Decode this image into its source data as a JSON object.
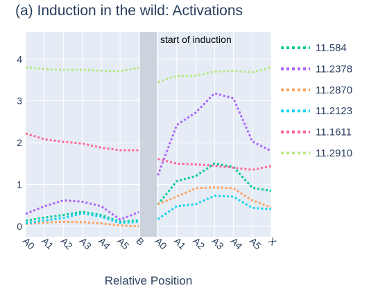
{
  "chart_data": {
    "type": "line",
    "title": "(a) Induction in the wild: Activations",
    "xlabel": "Relative Position",
    "ylabel": "",
    "categories": [
      "A0",
      "A1",
      "A2",
      "A3",
      "A4",
      "A5",
      "B",
      "A0",
      "A1",
      "A2",
      "A3",
      "A4",
      "A5",
      "X"
    ],
    "segments": [
      [
        0,
        6
      ],
      [
        7,
        13
      ]
    ],
    "ylim": [
      -0.25,
      4.65
    ],
    "yticks": [
      0,
      1,
      2,
      3,
      4
    ],
    "grid": true,
    "legend_position": "right",
    "line_style": "dotted",
    "shaded_region": {
      "category_index": 6.5,
      "color": "#cdd3dd"
    },
    "annotation": "start of induction",
    "series": [
      {
        "name": "11.584",
        "color": "#00cc96",
        "values": [
          0.13,
          0.21,
          0.27,
          0.35,
          0.27,
          0.11,
          0.14,
          0.52,
          1.08,
          1.2,
          1.5,
          1.42,
          0.92,
          0.85
        ]
      },
      {
        "name": "11.2378",
        "color": "#ab63fa",
        "values": [
          0.3,
          0.48,
          0.62,
          0.59,
          0.48,
          0.16,
          0.34,
          1.22,
          2.42,
          2.72,
          3.18,
          3.06,
          2.03,
          1.8
        ]
      },
      {
        "name": "11.2870",
        "color": "#ffa15a",
        "values": [
          0.06,
          0.09,
          0.11,
          0.1,
          0.07,
          0.02,
          0.0,
          0.53,
          0.71,
          0.91,
          0.93,
          0.91,
          0.62,
          0.45
        ]
      },
      {
        "name": "11.2123",
        "color": "#19d3f3",
        "values": [
          0.07,
          0.14,
          0.2,
          0.31,
          0.23,
          0.08,
          0.11,
          0.17,
          0.48,
          0.53,
          0.73,
          0.71,
          0.44,
          0.41
        ]
      },
      {
        "name": "11.1611",
        "color": "#ff6692",
        "values": [
          2.22,
          2.08,
          2.02,
          1.98,
          1.88,
          1.82,
          1.82,
          1.61,
          1.5,
          1.48,
          1.45,
          1.4,
          1.35,
          1.44
        ]
      },
      {
        "name": "11.2910",
        "color": "#b6e880",
        "values": [
          3.8,
          3.76,
          3.74,
          3.74,
          3.72,
          3.71,
          3.79,
          3.45,
          3.6,
          3.6,
          3.7,
          3.72,
          3.68,
          3.8
        ]
      }
    ]
  }
}
